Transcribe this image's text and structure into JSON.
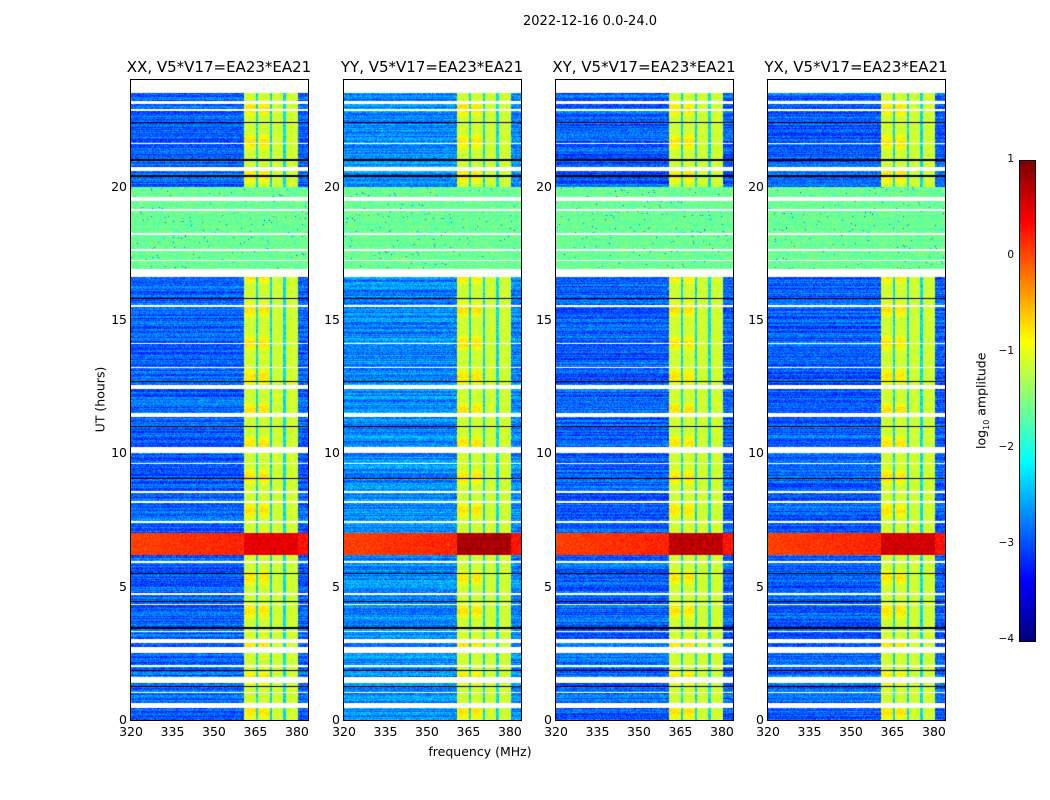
{
  "suptitle": "2022-12-16 0.0-24.0",
  "chart_data": {
    "type": "heatmap",
    "title": "2022-12-16 0.0-24.0",
    "xlabel": "frequency (MHz)",
    "ylabel": "UT (hours)",
    "xlim": [
      320,
      384
    ],
    "ylim": [
      0,
      24
    ],
    "xticks": [
      "320",
      "335",
      "350",
      "365",
      "380"
    ],
    "xtick_values": [
      320,
      335,
      350,
      365,
      380
    ],
    "yticks": [
      "0",
      "5",
      "10",
      "15",
      "20"
    ],
    "ytick_values": [
      0,
      5,
      10,
      15,
      20
    ],
    "colormap": "jet",
    "colorbar": {
      "label_main": "log",
      "label_sub": "10",
      "label_rest": " amplitude",
      "range": [
        -4,
        1
      ],
      "ticks": [
        "1",
        "0",
        "−1",
        "−2",
        "−3",
        "−4"
      ],
      "tick_values": [
        1,
        0,
        -1,
        -2,
        -3,
        -4
      ]
    },
    "panels": [
      {
        "title": "XX, V5*V17=EA23*EA21",
        "base": -2.9,
        "flare": 0.2
      },
      {
        "title": "YY, V5*V17=EA23*EA21",
        "base": -2.7,
        "flare": 0.5
      },
      {
        "title": "XY, V5*V17=EA23*EA21",
        "base": -2.9,
        "flare": 0.4
      },
      {
        "title": "YX, V5*V17=EA23*EA21",
        "base": -2.9,
        "flare": 0.3
      }
    ],
    "rfi_band_mhz": [
      361,
      380.5
    ],
    "rfi_gaps_mhz": [
      365.6,
      370.6,
      375.6
    ],
    "rfi_level": -1.1,
    "strong_event_hours": [
      6.2,
      7.0
    ],
    "strong_event_level": 0.6,
    "noisy_interval_hours": [
      16.6,
      20.0
    ],
    "noisy_level": -1.6,
    "flagged_hours": [
      [
        23.5,
        24.0
      ],
      [
        23.1,
        23.2
      ],
      [
        22.85,
        22.9
      ],
      [
        21.6,
        21.65
      ],
      [
        20.6,
        20.75
      ],
      [
        19.45,
        19.6
      ],
      [
        19.1,
        19.15
      ],
      [
        18.2,
        18.25
      ],
      [
        17.6,
        17.65
      ],
      [
        17.2,
        17.25
      ],
      [
        16.6,
        16.9
      ],
      [
        15.5,
        15.55
      ],
      [
        14.1,
        14.15
      ],
      [
        13.2,
        13.25
      ],
      [
        12.4,
        12.55
      ],
      [
        11.35,
        11.5
      ],
      [
        10.0,
        10.25
      ],
      [
        9.6,
        9.65
      ],
      [
        8.5,
        8.6
      ],
      [
        8.15,
        8.2
      ],
      [
        7.4,
        7.45
      ],
      [
        5.9,
        5.95
      ],
      [
        4.7,
        4.75
      ],
      [
        4.3,
        4.35
      ],
      [
        3.3,
        3.35
      ],
      [
        2.9,
        3.05
      ],
      [
        2.5,
        2.75
      ],
      [
        2.0,
        2.05
      ],
      [
        1.4,
        1.6
      ],
      [
        1.0,
        1.05
      ],
      [
        0.45,
        0.65
      ]
    ],
    "black_line_hours": [
      22.4,
      21.0,
      20.4,
      15.8,
      12.7,
      11.0,
      9.05,
      5.5,
      4.45,
      3.45,
      1.85,
      1.25
    ]
  }
}
